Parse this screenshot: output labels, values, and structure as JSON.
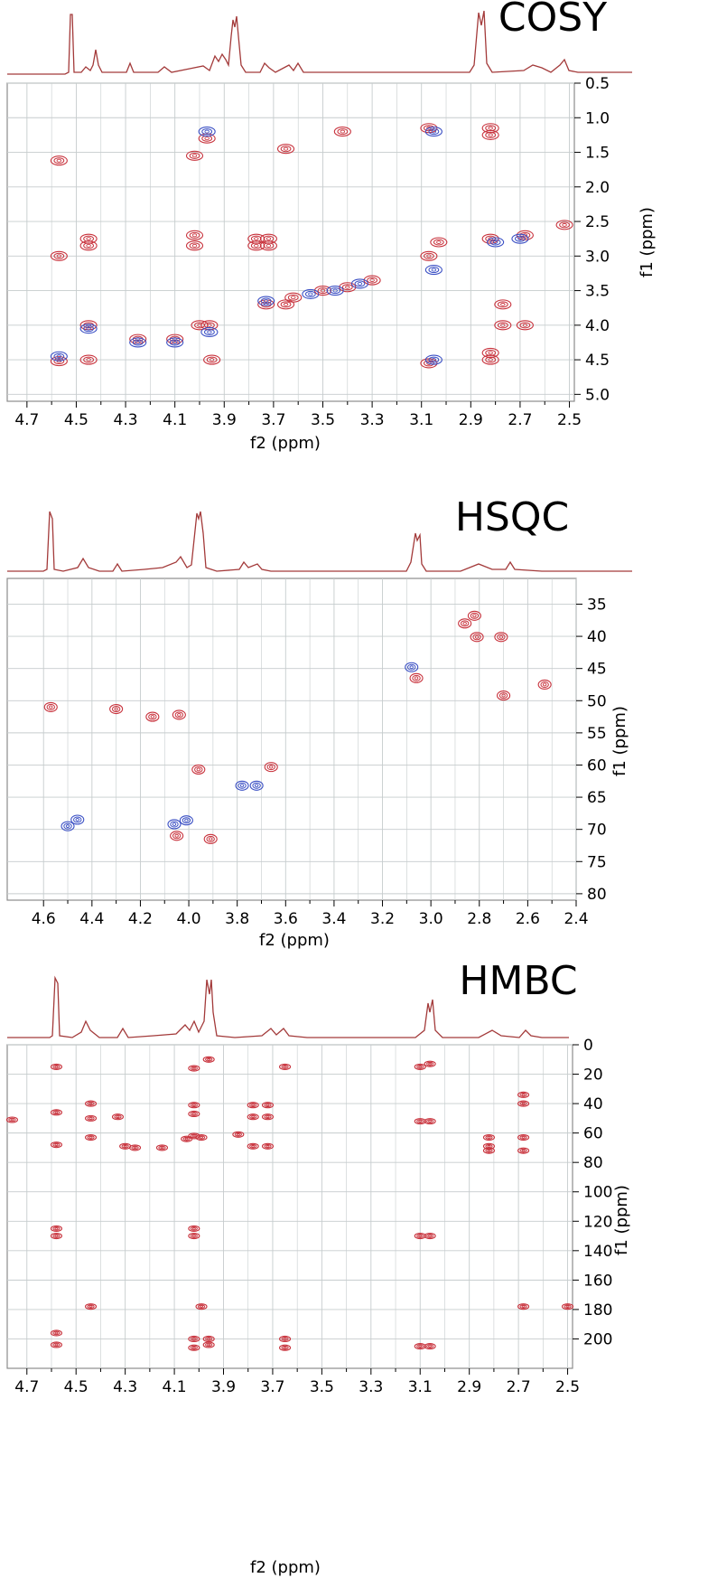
{
  "colors": {
    "positive": "#c8323c",
    "negative": "#3a4fc4",
    "trace": "#a33a3a",
    "grid": "#c6cccd",
    "frame": "#8c8c8c"
  },
  "chart_data": [
    {
      "type": "scatter",
      "title": "COSY",
      "xlabel": "f2 (ppm)",
      "ylabel": "f1 (ppm)",
      "xlim": [
        4.78,
        2.48
      ],
      "ylim": [
        5.1,
        0.5
      ],
      "xticks": [
        "4.7",
        "4.5",
        "4.3",
        "4.1",
        "3.9",
        "3.7",
        "3.5",
        "3.3",
        "3.1",
        "2.9",
        "2.7",
        "2.5"
      ],
      "yticks": [
        "0.5",
        "1.0",
        "1.5",
        "2.0",
        "2.5",
        "3.0",
        "3.5",
        "4.0",
        "4.5",
        "5.0"
      ],
      "series": [
        {
          "values": [
            [
              4.57,
              1.62
            ],
            [
              4.57,
              3.0
            ],
            [
              4.57,
              4.52
            ],
            [
              4.45,
              2.75
            ],
            [
              4.45,
              2.85
            ],
            [
              4.45,
              4.0
            ],
            [
              4.45,
              4.5
            ],
            [
              4.25,
              4.2
            ],
            [
              4.1,
              4.2
            ],
            [
              4.02,
              2.7
            ],
            [
              4.02,
              2.85
            ],
            [
              4.02,
              1.55
            ],
            [
              4.0,
              4.0
            ],
            [
              3.97,
              1.3
            ],
            [
              3.96,
              4.0
            ],
            [
              3.95,
              4.5
            ],
            [
              3.77,
              2.75
            ],
            [
              3.77,
              2.85
            ],
            [
              3.73,
              3.7
            ],
            [
              3.72,
              2.75
            ],
            [
              3.72,
              2.85
            ],
            [
              3.65,
              1.45
            ],
            [
              3.65,
              3.7
            ],
            [
              3.07,
              1.15
            ],
            [
              3.07,
              3.0
            ],
            [
              3.07,
              4.55
            ],
            [
              3.03,
              2.8
            ],
            [
              2.82,
              1.15
            ],
            [
              2.82,
              1.25
            ],
            [
              2.82,
              2.75
            ],
            [
              2.82,
              4.4
            ],
            [
              2.82,
              4.5
            ],
            [
              2.77,
              3.7
            ],
            [
              2.77,
              4.0
            ],
            [
              2.68,
              2.7
            ],
            [
              2.68,
              4.0
            ],
            [
              2.52,
              2.55
            ],
            [
              3.62,
              3.6
            ],
            [
              3.5,
              3.5
            ],
            [
              3.4,
              3.45
            ],
            [
              3.3,
              3.35
            ],
            [
              3.42,
              1.2
            ]
          ]
        },
        {
          "values": [
            [
              4.57,
              4.45
            ],
            [
              4.45,
              4.05
            ],
            [
              4.25,
              4.25
            ],
            [
              4.1,
              4.25
            ],
            [
              3.97,
              1.2
            ],
            [
              3.96,
              4.1
            ],
            [
              3.73,
              3.65
            ],
            [
              3.05,
              1.2
            ],
            [
              3.05,
              3.2
            ],
            [
              3.05,
              4.5
            ],
            [
              2.8,
              2.8
            ],
            [
              2.7,
              2.75
            ],
            [
              3.55,
              3.55
            ],
            [
              3.45,
              3.5
            ],
            [
              3.35,
              3.4
            ]
          ]
        }
      ]
    },
    {
      "type": "scatter",
      "title": "HSQC",
      "xlabel": "f2 (ppm)",
      "ylabel": "f1 (ppm)",
      "xlim": [
        4.75,
        2.4
      ],
      "ylim": [
        81,
        31
      ],
      "xticks": [
        "4.6",
        "4.4",
        "4.2",
        "4.0",
        "3.8",
        "3.6",
        "3.4",
        "3.2",
        "3.0",
        "2.8",
        "2.6",
        "2.4"
      ],
      "yticks": [
        "35",
        "40",
        "45",
        "50",
        "55",
        "60",
        "65",
        "70",
        "75",
        "80"
      ],
      "series": [
        {
          "values": [
            [
              4.57,
              51.0
            ],
            [
              4.3,
              51.3
            ],
            [
              4.15,
              52.5
            ],
            [
              4.04,
              52.2
            ],
            [
              3.96,
              60.7
            ],
            [
              4.05,
              71.0
            ],
            [
              3.91,
              71.5
            ],
            [
              3.66,
              60.3
            ],
            [
              3.06,
              46.5
            ],
            [
              2.86,
              38.0
            ],
            [
              2.82,
              36.8
            ],
            [
              2.81,
              40.1
            ],
            [
              2.71,
              40.1
            ],
            [
              2.7,
              49.2
            ],
            [
              2.53,
              47.5
            ]
          ]
        },
        {
          "values": [
            [
              4.46,
              68.5
            ],
            [
              4.5,
              69.5
            ],
            [
              4.06,
              69.2
            ],
            [
              4.01,
              68.6
            ],
            [
              3.78,
              63.2
            ],
            [
              3.72,
              63.2
            ],
            [
              3.08,
              44.8
            ]
          ]
        }
      ]
    },
    {
      "type": "scatter",
      "title": "HMBC",
      "xlabel": "f2 (ppm)",
      "ylabel": "f1 (ppm)",
      "xlim": [
        4.78,
        2.48
      ],
      "ylim": [
        220,
        0
      ],
      "xticks": [
        "4.7",
        "4.5",
        "4.3",
        "4.1",
        "3.9",
        "3.7",
        "3.5",
        "3.3",
        "3.1",
        "2.9",
        "2.7",
        "2.5"
      ],
      "yticks": [
        "0",
        "20",
        "40",
        "60",
        "80",
        "100",
        "120",
        "140",
        "160",
        "180",
        "200"
      ],
      "series": [
        {
          "values": [
            [
              4.58,
              15
            ],
            [
              4.58,
              46
            ],
            [
              4.58,
              68
            ],
            [
              4.58,
              125
            ],
            [
              4.58,
              130
            ],
            [
              4.58,
              196
            ],
            [
              4.58,
              204
            ],
            [
              4.44,
              40
            ],
            [
              4.44,
              50
            ],
            [
              4.44,
              63
            ],
            [
              4.44,
              178
            ],
            [
              4.3,
              69
            ],
            [
              4.26,
              70
            ],
            [
              4.15,
              70
            ],
            [
              4.05,
              64
            ],
            [
              4.02,
              16
            ],
            [
              4.02,
              41
            ],
            [
              4.02,
              47
            ],
            [
              4.02,
              62
            ],
            [
              4.02,
              125
            ],
            [
              4.02,
              130
            ],
            [
              4.02,
              200
            ],
            [
              4.02,
              206
            ],
            [
              3.99,
              63
            ],
            [
              3.99,
              178
            ],
            [
              3.96,
              10
            ],
            [
              3.96,
              200
            ],
            [
              3.96,
              204
            ],
            [
              3.84,
              61
            ],
            [
              3.78,
              41
            ],
            [
              3.78,
              49
            ],
            [
              3.78,
              69
            ],
            [
              3.72,
              41
            ],
            [
              3.72,
              49
            ],
            [
              3.72,
              69
            ],
            [
              3.65,
              15
            ],
            [
              3.65,
              200
            ],
            [
              3.65,
              206
            ],
            [
              3.1,
              15
            ],
            [
              3.06,
              13
            ],
            [
              3.1,
              52
            ],
            [
              3.06,
              52
            ],
            [
              3.1,
              130
            ],
            [
              3.06,
              130
            ],
            [
              3.1,
              205
            ],
            [
              3.06,
              205
            ],
            [
              2.82,
              63
            ],
            [
              2.82,
              69
            ],
            [
              2.82,
              72
            ],
            [
              2.68,
              34
            ],
            [
              2.68,
              40
            ],
            [
              2.68,
              63
            ],
            [
              2.68,
              72
            ],
            [
              2.68,
              178
            ],
            [
              2.5,
              178
            ],
            [
              4.76,
              51
            ],
            [
              4.33,
              49
            ]
          ]
        }
      ]
    }
  ]
}
